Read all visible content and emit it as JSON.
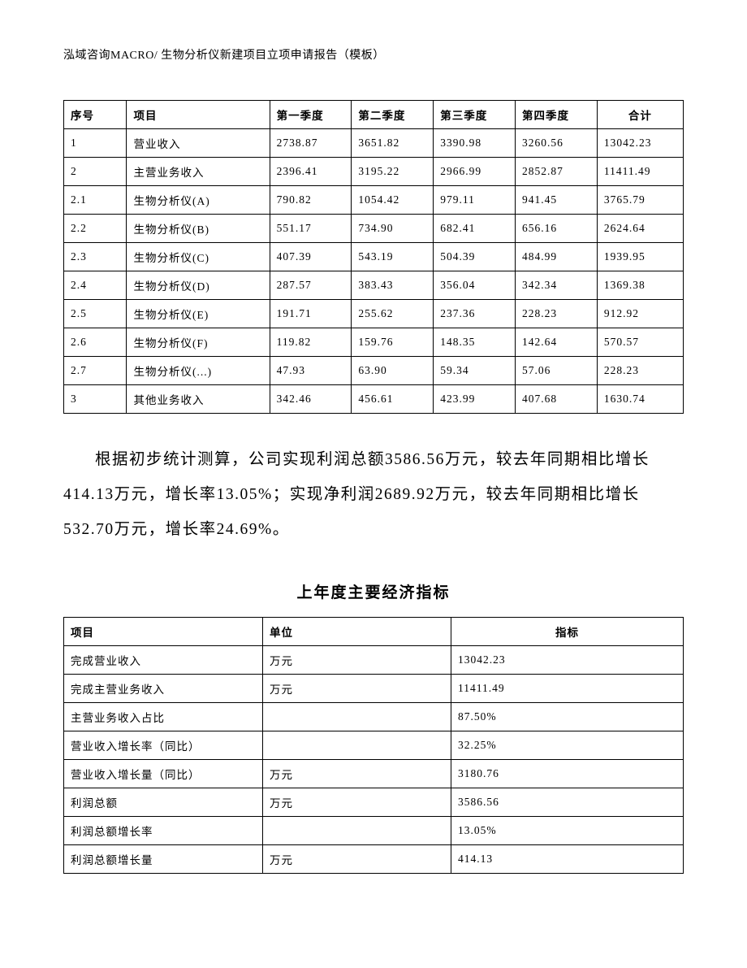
{
  "header": "泓域咨询MACRO/    生物分析仪新建项目立项申请报告（模板）",
  "table1": {
    "columns": [
      "序号",
      "项目",
      "第一季度",
      "第二季度",
      "第三季度",
      "第四季度",
      "合计"
    ],
    "rows": [
      [
        "1",
        "营业收入",
        "2738.87",
        "3651.82",
        "3390.98",
        "3260.56",
        "13042.23"
      ],
      [
        "2",
        "主营业务收入",
        "2396.41",
        "3195.22",
        "2966.99",
        "2852.87",
        "11411.49"
      ],
      [
        "2.1",
        "生物分析仪(A)",
        "790.82",
        "1054.42",
        "979.11",
        "941.45",
        "3765.79"
      ],
      [
        "2.2",
        "生物分析仪(B)",
        "551.17",
        "734.90",
        "682.41",
        "656.16",
        "2624.64"
      ],
      [
        "2.3",
        "生物分析仪(C)",
        "407.39",
        "543.19",
        "504.39",
        "484.99",
        "1939.95"
      ],
      [
        "2.4",
        "生物分析仪(D)",
        "287.57",
        "383.43",
        "356.04",
        "342.34",
        "1369.38"
      ],
      [
        "2.5",
        "生物分析仪(E)",
        "191.71",
        "255.62",
        "237.36",
        "228.23",
        "912.92"
      ],
      [
        "2.6",
        "生物分析仪(F)",
        "119.82",
        "159.76",
        "148.35",
        "142.64",
        "570.57"
      ],
      [
        "2.7",
        "生物分析仪(...)",
        "47.93",
        "63.90",
        "59.34",
        "57.06",
        "228.23"
      ],
      [
        "3",
        "其他业务收入",
        "342.46",
        "456.61",
        "423.99",
        "407.68",
        "1630.74"
      ]
    ]
  },
  "body_text": "根据初步统计测算，公司实现利润总额3586.56万元，较去年同期相比增长414.13万元，增长率13.05%；实现净利润2689.92万元，较去年同期相比增长532.70万元，增长率24.69%。",
  "section_title": "上年度主要经济指标",
  "table2": {
    "columns": [
      "项目",
      "单位",
      "指标"
    ],
    "rows": [
      [
        "完成营业收入",
        "万元",
        "13042.23"
      ],
      [
        "完成主营业务收入",
        "万元",
        "11411.49"
      ],
      [
        "主营业务收入占比",
        "",
        "87.50%"
      ],
      [
        "营业收入增长率（同比）",
        "",
        "32.25%"
      ],
      [
        "营业收入增长量（同比）",
        "万元",
        "3180.76"
      ],
      [
        "利润总额",
        "万元",
        "3586.56"
      ],
      [
        "利润总额增长率",
        "",
        "13.05%"
      ],
      [
        "利润总额增长量",
        "万元",
        "414.13"
      ]
    ]
  }
}
